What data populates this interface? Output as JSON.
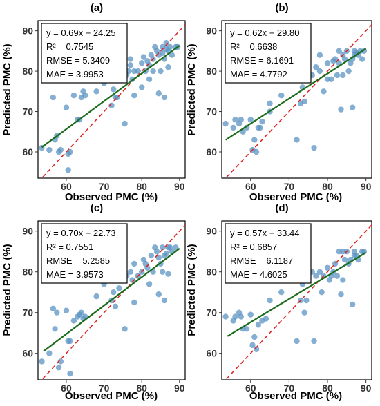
{
  "chart_data": [
    {
      "type": "scatter",
      "title": "(a)",
      "xlabel": "Observed PMC (%)",
      "ylabel": "Predicted PMC (%)",
      "xlim": [
        52.5,
        91.5
      ],
      "ylim": [
        53.5,
        92.5
      ],
      "xticks": [
        60,
        70,
        80,
        90
      ],
      "yticks": [
        60,
        70,
        80,
        90
      ],
      "grid": false,
      "regression": {
        "slope": 0.69,
        "intercept": 24.25,
        "x_range": [
          53.5,
          90
        ]
      },
      "annotation": [
        "y = 0.69x + 24.25",
        "R² = 0.7545",
        "RMSE = 5.3409",
        "MAE = 3.9953"
      ],
      "points": [
        [
          53.5,
          61
        ],
        [
          55.5,
          60.5
        ],
        [
          56.5,
          73.5
        ],
        [
          57,
          63
        ],
        [
          57.5,
          64
        ],
        [
          58,
          60
        ],
        [
          58.5,
          60.5
        ],
        [
          60,
          71
        ],
        [
          60.5,
          59.5
        ],
        [
          61,
          60
        ],
        [
          60.5,
          55.5
        ],
        [
          62,
          74
        ],
        [
          63,
          68
        ],
        [
          63.5,
          68
        ],
        [
          64,
          73.5
        ],
        [
          64.5,
          75
        ],
        [
          65,
          74
        ],
        [
          68,
          75
        ],
        [
          70,
          77
        ],
        [
          72,
          71.5
        ],
        [
          72.5,
          75.5
        ],
        [
          73,
          73.5
        ],
        [
          73.5,
          73.5
        ],
        [
          74,
          82
        ],
        [
          75,
          79
        ],
        [
          75.5,
          67
        ],
        [
          76,
          79
        ],
        [
          76.5,
          80
        ],
        [
          77,
          81.5
        ],
        [
          77,
          83
        ],
        [
          77.5,
          78
        ],
        [
          78,
          74
        ],
        [
          78,
          80
        ],
        [
          79,
          80
        ],
        [
          80,
          76
        ],
        [
          80,
          82
        ],
        [
          80.5,
          83.5
        ],
        [
          81,
          80
        ],
        [
          81.5,
          82.5
        ],
        [
          82,
          81.5
        ],
        [
          82,
          78
        ],
        [
          82.5,
          84
        ],
        [
          83,
          80
        ],
        [
          83,
          83
        ],
        [
          83.5,
          86
        ],
        [
          84,
          85
        ],
        [
          84.5,
          84
        ],
        [
          84.5,
          74.5
        ],
        [
          85,
          80
        ],
        [
          85.5,
          84.5
        ],
        [
          85.5,
          86
        ],
        [
          86,
          83
        ],
        [
          86,
          73.5
        ],
        [
          86.5,
          85.5
        ],
        [
          86.5,
          87
        ],
        [
          87,
          85
        ],
        [
          87,
          81
        ],
        [
          87.5,
          86
        ],
        [
          88,
          84
        ],
        [
          89,
          86
        ],
        [
          89.5,
          86
        ]
      ]
    },
    {
      "type": "scatter",
      "title": "(b)",
      "xlabel": "Observed PMC (%)",
      "ylabel": "Predicted PMC (%)",
      "xlim": [
        52.5,
        91.5
      ],
      "ylim": [
        53.5,
        92.5
      ],
      "xticks": [
        60,
        70,
        80,
        90
      ],
      "yticks": [
        60,
        70,
        80,
        90
      ],
      "grid": false,
      "regression": {
        "slope": 0.62,
        "intercept": 29.8,
        "x_range": [
          53.5,
          90
        ]
      },
      "annotation": [
        "y = 0.62x + 29.80",
        "R² = 0.6638",
        "RMSE = 6.1691",
        "MAE = 4.7792"
      ],
      "points": [
        [
          53.5,
          67
        ],
        [
          55.5,
          66
        ],
        [
          56,
          68
        ],
        [
          57,
          67
        ],
        [
          57.5,
          68
        ],
        [
          58,
          65
        ],
        [
          59,
          66
        ],
        [
          60,
          68
        ],
        [
          60.5,
          60.5
        ],
        [
          61,
          63
        ],
        [
          61.5,
          60
        ],
        [
          62,
          66
        ],
        [
          62.5,
          66
        ],
        [
          63,
          67.5
        ],
        [
          65,
          70
        ],
        [
          65,
          72
        ],
        [
          68,
          74
        ],
        [
          71,
          82
        ],
        [
          72,
          63
        ],
        [
          73,
          72
        ],
        [
          73.5,
          76
        ],
        [
          74,
          72.5
        ],
        [
          75,
          80
        ],
        [
          76,
          79
        ],
        [
          76.5,
          61
        ],
        [
          77,
          81
        ],
        [
          78,
          84
        ],
        [
          78,
          80
        ],
        [
          79,
          75
        ],
        [
          80,
          78
        ],
        [
          80,
          82
        ],
        [
          81,
          78
        ],
        [
          81.5,
          82.5
        ],
        [
          82,
          83
        ],
        [
          82.5,
          79
        ],
        [
          83,
          82
        ],
        [
          83,
          85
        ],
        [
          83.5,
          70.5
        ],
        [
          84,
          79
        ],
        [
          84,
          84
        ],
        [
          84.5,
          83
        ],
        [
          85,
          85
        ],
        [
          85.5,
          80
        ],
        [
          86,
          82
        ],
        [
          86.5,
          83
        ],
        [
          86.5,
          71
        ],
        [
          87,
          84
        ],
        [
          87,
          85
        ],
        [
          87.5,
          84.5
        ],
        [
          88,
          84
        ],
        [
          88.5,
          85
        ],
        [
          89,
          83
        ],
        [
          89.5,
          85
        ]
      ]
    },
    {
      "type": "scatter",
      "title": "(c)",
      "xlabel": "Observed PMC (%)",
      "ylabel": "Predicted PMC (%)",
      "xlim": [
        52.5,
        91.5
      ],
      "ylim": [
        53.5,
        92.5
      ],
      "xticks": [
        60,
        70,
        80,
        90
      ],
      "yticks": [
        60,
        70,
        80,
        90
      ],
      "grid": false,
      "regression": {
        "slope": 0.7,
        "intercept": 22.73,
        "x_range": [
          54,
          90
        ]
      },
      "annotation": [
        "y = 0.70x + 22.73",
        "R² = 0.7551",
        "RMSE = 5.2585",
        "MAE = 3.9573"
      ],
      "points": [
        [
          53.5,
          58
        ],
        [
          55.5,
          60
        ],
        [
          56.5,
          71
        ],
        [
          57,
          66
        ],
        [
          57.5,
          70
        ],
        [
          58,
          56.5
        ],
        [
          58.5,
          58
        ],
        [
          60,
          70.5
        ],
        [
          60.5,
          63
        ],
        [
          61,
          55
        ],
        [
          61,
          63
        ],
        [
          62,
          68
        ],
        [
          63,
          69
        ],
        [
          63.5,
          69.5
        ],
        [
          64,
          70
        ],
        [
          64.5,
          68.5
        ],
        [
          65,
          69
        ],
        [
          68,
          74
        ],
        [
          70,
          77
        ],
        [
          72,
          73
        ],
        [
          72.5,
          75
        ],
        [
          73,
          71.5
        ],
        [
          74,
          76
        ],
        [
          74,
          82
        ],
        [
          75,
          78.5
        ],
        [
          75.5,
          66
        ],
        [
          76,
          79
        ],
        [
          77,
          80
        ],
        [
          77.5,
          78
        ],
        [
          78,
          72.5
        ],
        [
          78,
          82
        ],
        [
          79,
          79
        ],
        [
          80,
          80
        ],
        [
          80.5,
          83
        ],
        [
          81,
          82
        ],
        [
          81.5,
          81
        ],
        [
          82,
          77
        ],
        [
          82.5,
          84
        ],
        [
          83,
          80
        ],
        [
          83.5,
          86
        ],
        [
          84,
          85
        ],
        [
          84.5,
          83.5
        ],
        [
          84.5,
          74.5
        ],
        [
          85,
          82
        ],
        [
          85.5,
          80
        ],
        [
          85.5,
          86
        ],
        [
          86,
          84
        ],
        [
          86,
          73
        ],
        [
          86.5,
          84.5
        ],
        [
          87,
          86
        ],
        [
          87,
          79.5
        ],
        [
          87.5,
          86
        ],
        [
          88,
          85
        ],
        [
          89,
          86
        ]
      ]
    },
    {
      "type": "scatter",
      "title": "(d)",
      "xlabel": "Observed PMC (%)",
      "ylabel": "Predicted PMC (%)",
      "xlim": [
        52.5,
        91.5
      ],
      "ylim": [
        53.5,
        92.5
      ],
      "xticks": [
        60,
        70,
        80,
        90
      ],
      "yticks": [
        60,
        70,
        80,
        90
      ],
      "grid": false,
      "regression": {
        "slope": 0.57,
        "intercept": 33.44,
        "x_range": [
          54,
          90
        ]
      },
      "annotation": [
        "y = 0.57x + 33.44",
        "R² = 0.6857",
        "RMSE = 6.1187",
        "MAE = 4.6025"
      ],
      "points": [
        [
          53.5,
          69
        ],
        [
          55.5,
          68
        ],
        [
          56,
          69
        ],
        [
          57,
          70
        ],
        [
          57.5,
          69
        ],
        [
          58,
          66
        ],
        [
          59,
          66
        ],
        [
          60,
          69.5
        ],
        [
          60.5,
          62
        ],
        [
          61,
          64
        ],
        [
          61.5,
          61
        ],
        [
          62,
          67
        ],
        [
          63,
          68
        ],
        [
          64,
          68.5
        ],
        [
          65,
          73
        ],
        [
          68,
          75
        ],
        [
          71,
          80
        ],
        [
          72,
          63
        ],
        [
          73,
          73
        ],
        [
          73.5,
          77
        ],
        [
          74,
          70
        ],
        [
          74.5,
          73
        ],
        [
          75,
          79
        ],
        [
          76,
          80
        ],
        [
          76.5,
          63
        ],
        [
          77,
          79
        ],
        [
          78,
          80
        ],
        [
          78.5,
          75
        ],
        [
          79,
          79
        ],
        [
          80,
          81
        ],
        [
          80.5,
          78
        ],
        [
          81,
          79
        ],
        [
          81.5,
          80
        ],
        [
          82,
          82
        ],
        [
          82.5,
          79
        ],
        [
          83,
          85
        ],
        [
          83.5,
          74.5
        ],
        [
          84,
          78
        ],
        [
          84,
          85
        ],
        [
          84.5,
          83
        ],
        [
          85,
          85
        ],
        [
          85.5,
          82
        ],
        [
          86,
          83
        ],
        [
          86.5,
          72
        ],
        [
          87,
          84
        ],
        [
          87,
          85
        ],
        [
          87.5,
          84
        ],
        [
          88,
          83
        ],
        [
          89,
          85
        ],
        [
          89.5,
          85
        ]
      ]
    }
  ],
  "style": {
    "point_color": "#5b93c3",
    "regression_color": "#1a6b1a",
    "identity_line_color": "#e02020"
  }
}
